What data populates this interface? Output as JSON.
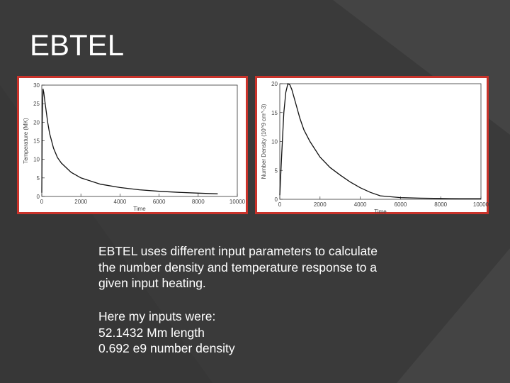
{
  "slide": {
    "title": "EBTEL",
    "paragraph1": [
      "EBTEL uses different input parameters to calculate",
      "the number density and temperature response to a",
      "given input heating."
    ],
    "paragraph2": [
      "Here my inputs were:",
      "52.1432 Mm length",
      "0.692 e9 number density"
    ]
  },
  "colors": {
    "background": "#3a3a3a",
    "title_text": "#ffffff",
    "chart_border": "#c9332b"
  },
  "chart_data": [
    {
      "type": "line",
      "xlabel": "Time",
      "ylabel": "Temperature (MK)",
      "xlim": [
        0,
        10000
      ],
      "ylim": [
        0,
        30
      ],
      "xticks": [
        "0",
        "2000",
        "4000",
        "6000",
        "8000",
        "10000"
      ],
      "yticks": [
        "0",
        "5",
        "10",
        "15",
        "20",
        "25",
        "30"
      ],
      "grid": false,
      "series": [
        {
          "x": [
            0,
            20,
            60,
            100,
            150,
            200,
            300,
            400,
            600,
            800,
            1000,
            1500,
            2000,
            3000,
            4000,
            5000,
            6000,
            7000,
            8000,
            9000
          ],
          "values": [
            1,
            20,
            29,
            28,
            26,
            24,
            20,
            17,
            13,
            10.5,
            9,
            6.5,
            5,
            3.3,
            2.4,
            1.8,
            1.4,
            1.1,
            0.9,
            0.7
          ]
        }
      ]
    },
    {
      "type": "line",
      "xlabel": "Time",
      "ylabel": "Number Density (10^9 cm^-3)",
      "xlim": [
        0,
        10000
      ],
      "ylim": [
        0,
        20
      ],
      "xticks": [
        "0",
        "2000",
        "4000",
        "6000",
        "8000",
        "10000"
      ],
      "yticks": [
        "0",
        "5",
        "10",
        "15",
        "20"
      ],
      "grid": false,
      "series": [
        {
          "x": [
            0,
            100,
            200,
            300,
            400,
            500,
            600,
            800,
            1000,
            1200,
            1500,
            2000,
            2500,
            3000,
            3500,
            4000,
            4500,
            5000,
            6000,
            7000,
            8000,
            9000,
            10000
          ],
          "values": [
            0.7,
            8,
            15,
            18.5,
            20,
            19.8,
            19,
            16.5,
            14,
            12,
            10,
            7.3,
            5.5,
            4.2,
            3,
            2,
            1.2,
            0.6,
            0.3,
            0.2,
            0.15,
            0.1,
            0.1
          ]
        }
      ]
    }
  ]
}
